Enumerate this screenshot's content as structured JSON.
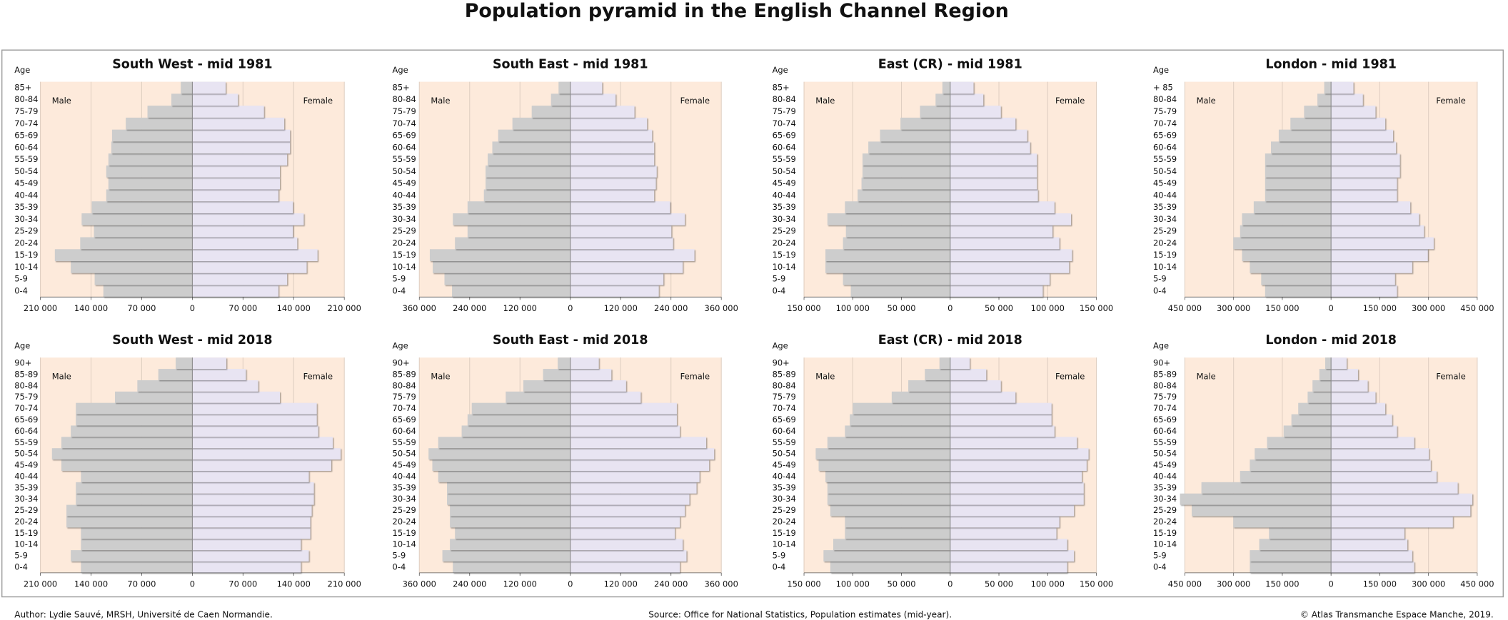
{
  "title": "Population pyramid in the English Channel Region",
  "author": "Author: Lydie Sauvé, MRSH, Université de Caen Normandie.",
  "source": "Source: Office for National Statistics, Population estimates (mid-year).",
  "copyright": "© Atlas Transmanche Espace Manche, 2019.",
  "background": "#fdeadb",
  "chart_data": [
    {
      "type": "pyramid",
      "title": "South West - mid 1981",
      "y_label": "Age",
      "categories": [
        "0-4",
        "5-9",
        "10-14",
        "15-19",
        "20-24",
        "25-29",
        "30-34",
        "35-39",
        "40-44",
        "45-49",
        "50-54",
        "55-59",
        "60-64",
        "65-69",
        "70-74",
        "75-79",
        "80-84",
        "85+"
      ],
      "series": [
        {
          "name": "Male",
          "color": "#cdcdcd",
          "values": [
            123000,
            135000,
            168000,
            190000,
            155000,
            136000,
            153000,
            139000,
            119000,
            116000,
            119000,
            116000,
            112000,
            111000,
            92000,
            62000,
            29000,
            16000
          ]
        },
        {
          "name": "Female",
          "color": "#e8e4f2",
          "values": [
            119000,
            131000,
            158000,
            173000,
            145000,
            139000,
            154000,
            139000,
            119000,
            121000,
            121000,
            131000,
            135000,
            135000,
            127000,
            99000,
            63000,
            46000
          ]
        }
      ],
      "xlim": [
        -210000,
        210000
      ],
      "xticks": [
        {
          "value": -210000,
          "label": "210 000"
        },
        {
          "value": -140000,
          "label": "140 000"
        },
        {
          "value": -70000,
          "label": "70 000"
        },
        0,
        {
          "value": 70000,
          "label": "70 000"
        },
        {
          "value": 140000,
          "label": "140 000"
        },
        {
          "value": 210000,
          "label": "210 000"
        }
      ],
      "grid": true
    },
    {
      "type": "pyramid",
      "title": "South East - mid 1981",
      "y_label": "Age",
      "categories": [
        "0-4",
        "5-9",
        "10-14",
        "15-19",
        "20-24",
        "25-29",
        "30-34",
        "35-39",
        "40-44",
        "45-49",
        "50-54",
        "55-59",
        "60-64",
        "65-69",
        "70-74",
        "75-79",
        "80-84",
        "85+"
      ],
      "series": [
        {
          "name": "Male",
          "color": "#cdcdcd",
          "values": [
            282000,
            300000,
            328000,
            335000,
            275000,
            245000,
            280000,
            245000,
            206000,
            202000,
            202000,
            197000,
            186000,
            172000,
            138000,
            92000,
            46000,
            28000
          ]
        },
        {
          "name": "Female",
          "color": "#e8e4f2",
          "values": [
            211000,
            222000,
            268000,
            296000,
            245000,
            241000,
            273000,
            238000,
            200000,
            204000,
            206000,
            200000,
            200000,
            195000,
            183000,
            153000,
            108000,
            76000
          ]
        }
      ],
      "xlim": [
        -360000,
        360000
      ],
      "xticks": [
        {
          "value": -360000,
          "label": "360 000"
        },
        {
          "value": -240000,
          "label": "240 000"
        },
        {
          "value": -120000,
          "label": "120 000"
        },
        0,
        {
          "value": 120000,
          "label": "120 000"
        },
        {
          "value": 240000,
          "label": "240 000"
        },
        {
          "value": 360000,
          "label": "360 000"
        }
      ],
      "grid": true
    },
    {
      "type": "pyramid",
      "title": "East (CR) - mid 1981",
      "y_label": "Age",
      "categories": [
        "0-4",
        "5-9",
        "10-14",
        "15-19",
        "20-24",
        "25-29",
        "30-34",
        "35-39",
        "40-44",
        "45-49",
        "50-54",
        "55-59",
        "60-64",
        "65-69",
        "70-74",
        "75-79",
        "80-84",
        "85+"
      ],
      "series": [
        {
          "name": "Male",
          "color": "#cdcdcd",
          "values": [
            102000,
            110000,
            128000,
            128000,
            110000,
            107000,
            126000,
            108000,
            95000,
            91000,
            90000,
            90000,
            84000,
            72000,
            51000,
            31000,
            15000,
            8000
          ]
        },
        {
          "name": "Female",
          "color": "#e8e4f2",
          "values": [
            95000,
            102000,
            122000,
            125000,
            112000,
            105000,
            124000,
            107000,
            90000,
            89000,
            89000,
            89000,
            82000,
            79000,
            67000,
            52000,
            34000,
            24000
          ]
        }
      ],
      "xlim": [
        -150000,
        150000
      ],
      "xticks": [
        {
          "value": -150000,
          "label": "150 000"
        },
        {
          "value": -100000,
          "label": "100 000"
        },
        {
          "value": -50000,
          "label": "50 000"
        },
        0,
        {
          "value": 50000,
          "label": "50 000"
        },
        {
          "value": 100000,
          "label": "100 000"
        },
        {
          "value": 150000,
          "label": "150 000"
        }
      ],
      "grid": true
    },
    {
      "type": "pyramid",
      "title": "London - mid 1981",
      "y_label": "Age",
      "categories": [
        "0-4",
        "5-9",
        "10-14",
        "15-19",
        "20-24",
        "25-29",
        "30-34",
        "35-39",
        "40-44",
        "45-49",
        "50-54",
        "55-59",
        "60-64",
        "65-69",
        "70-74",
        "75-79",
        "80-84",
        "+ 85"
      ],
      "series": [
        {
          "name": "Male",
          "color": "#cdcdcd",
          "values": [
            203000,
            215000,
            250000,
            274000,
            301000,
            280000,
            274000,
            238000,
            203000,
            203000,
            203000,
            203000,
            185000,
            161000,
            125000,
            83000,
            42000,
            21000
          ]
        },
        {
          "name": "Female",
          "color": "#e8e4f2",
          "values": [
            203000,
            197000,
            250000,
            298000,
            316000,
            286000,
            271000,
            244000,
            203000,
            203000,
            212000,
            212000,
            200000,
            191000,
            167000,
            137000,
            98000,
            69000
          ]
        }
      ],
      "xlim": [
        -450000,
        450000
      ],
      "xticks": [
        {
          "value": -450000,
          "label": "450 000"
        },
        {
          "value": -300000,
          "label": "300 000"
        },
        {
          "value": -150000,
          "label": "150 000"
        },
        0,
        {
          "value": 150000,
          "label": "150 000"
        },
        {
          "value": 300000,
          "label": "300 000"
        },
        {
          "value": 450000,
          "label": "450 000"
        }
      ],
      "grid": true
    },
    {
      "type": "pyramid",
      "title": "South West - mid 2018",
      "y_label": "Age",
      "categories": [
        "0-4",
        "5-9",
        "10-14",
        "15-19",
        "20-24",
        "25-29",
        "30-34",
        "35-39",
        "40-44",
        "45-49",
        "50-54",
        "55-59",
        "60-64",
        "65-69",
        "70-74",
        "75-79",
        "80-84",
        "85-89",
        "90+"
      ],
      "series": [
        {
          "name": "Male",
          "color": "#cdcdcd",
          "values": [
            154000,
            168000,
            154000,
            154000,
            174000,
            174000,
            161000,
            161000,
            154000,
            181000,
            194000,
            181000,
            168000,
            161000,
            161000,
            107000,
            76000,
            47000,
            23000
          ]
        },
        {
          "name": "Female",
          "color": "#e8e4f2",
          "values": [
            150000,
            161000,
            150000,
            163000,
            163000,
            165000,
            168000,
            168000,
            161000,
            192000,
            205000,
            194000,
            174000,
            172000,
            172000,
            121000,
            91000,
            74000,
            47000
          ]
        }
      ],
      "xlim": [
        -210000,
        210000
      ],
      "xticks": [
        {
          "value": -210000,
          "label": "210 000"
        },
        {
          "value": -140000,
          "label": "140 000"
        },
        {
          "value": -70000,
          "label": "70 000"
        },
        0,
        {
          "value": 70000,
          "label": "70 000"
        },
        {
          "value": 140000,
          "label": "140 000"
        },
        {
          "value": 210000,
          "label": "210 000"
        }
      ],
      "grid": true
    },
    {
      "type": "pyramid",
      "title": "South East - mid 2018",
      "y_label": "Age",
      "categories": [
        "0-4",
        "5-9",
        "10-14",
        "15-19",
        "20-24",
        "25-29",
        "30-34",
        "35-39",
        "40-44",
        "45-49",
        "50-54",
        "55-59",
        "60-64",
        "65-69",
        "70-74",
        "75-79",
        "80-84",
        "85-89",
        "90+"
      ],
      "series": [
        {
          "name": "Male",
          "color": "#cdcdcd",
          "values": [
            280000,
            305000,
            287000,
            275000,
            287000,
            287000,
            294000,
            294000,
            315000,
            329000,
            338000,
            315000,
            259000,
            245000,
            235000,
            154000,
            112000,
            65000,
            30000
          ]
        },
        {
          "name": "Female",
          "color": "#e8e4f2",
          "values": [
            261000,
            277000,
            268000,
            249000,
            261000,
            273000,
            284000,
            301000,
            308000,
            331000,
            343000,
            324000,
            261000,
            254000,
            254000,
            168000,
            133000,
            98000,
            68000
          ]
        }
      ],
      "xlim": [
        -360000,
        360000
      ],
      "xticks": [
        {
          "value": -360000,
          "label": "360 000"
        },
        {
          "value": -240000,
          "label": "240 000"
        },
        {
          "value": -120000,
          "label": "120 000"
        },
        0,
        {
          "value": 120000,
          "label": "120 000"
        },
        {
          "value": 240000,
          "label": "240 000"
        },
        {
          "value": 360000,
          "label": "360 000"
        }
      ],
      "grid": true
    },
    {
      "type": "pyramid",
      "title": "East (CR) - mid 2018",
      "y_label": "Age",
      "categories": [
        "0-4",
        "5-9",
        "10-14",
        "15-19",
        "20-24",
        "25-29",
        "30-34",
        "35-39",
        "40-44",
        "45-49",
        "50-54",
        "55-59",
        "60-64",
        "65-69",
        "70-74",
        "75-79",
        "80-84",
        "85-89",
        "90+"
      ],
      "series": [
        {
          "name": "Male",
          "color": "#cdcdcd",
          "values": [
            123000,
            130000,
            120000,
            108000,
            108000,
            123000,
            126000,
            126000,
            128000,
            135000,
            138000,
            126000,
            108000,
            103000,
            100000,
            60000,
            43000,
            26000,
            11000
          ]
        },
        {
          "name": "Female",
          "color": "#e8e4f2",
          "values": [
            120000,
            127000,
            120000,
            109000,
            112000,
            127000,
            137000,
            137000,
            135000,
            140000,
            142000,
            130000,
            107000,
            104000,
            104000,
            67000,
            52000,
            37000,
            20000
          ]
        }
      ],
      "xlim": [
        -150000,
        150000
      ],
      "xticks": [
        {
          "value": -150000,
          "label": "150 000"
        },
        {
          "value": -100000,
          "label": "100 000"
        },
        {
          "value": -50000,
          "label": "50 000"
        },
        0,
        {
          "value": 50000,
          "label": "50 000"
        },
        {
          "value": 100000,
          "label": "100 000"
        },
        {
          "value": 150000,
          "label": "150 000"
        }
      ],
      "grid": true
    },
    {
      "type": "pyramid",
      "title": "London - mid 2018",
      "y_label": "Age",
      "categories": [
        "0-4",
        "5-9",
        "10-14",
        "15-19",
        "20-24",
        "25-29",
        "30-34",
        "35-39",
        "40-44",
        "45-49",
        "50-54",
        "55-59",
        "60-64",
        "65-69",
        "70-74",
        "75-79",
        "80-84",
        "85-89",
        "90+"
      ],
      "series": [
        {
          "name": "Male",
          "color": "#cdcdcd",
          "values": [
            250000,
            250000,
            221000,
            191000,
            301000,
            429000,
            465000,
            399000,
            280000,
            250000,
            235000,
            197000,
            146000,
            122000,
            101000,
            72000,
            57000,
            36000,
            18000
          ]
        },
        {
          "name": "Female",
          "color": "#e8e4f2",
          "values": [
            256000,
            250000,
            235000,
            226000,
            375000,
            429000,
            435000,
            390000,
            325000,
            307000,
            301000,
            256000,
            203000,
            188000,
            167000,
            137000,
            113000,
            83000,
            48000
          ]
        }
      ],
      "xlim": [
        -450000,
        450000
      ],
      "xticks": [
        {
          "value": -450000,
          "label": "450 000"
        },
        {
          "value": -300000,
          "label": "300 000"
        },
        {
          "value": -150000,
          "label": "150 000"
        },
        0,
        {
          "value": 150000,
          "label": "150 000"
        },
        {
          "value": 300000,
          "label": "300 000"
        },
        {
          "value": 450000,
          "label": "450 000"
        }
      ],
      "grid": true
    }
  ]
}
